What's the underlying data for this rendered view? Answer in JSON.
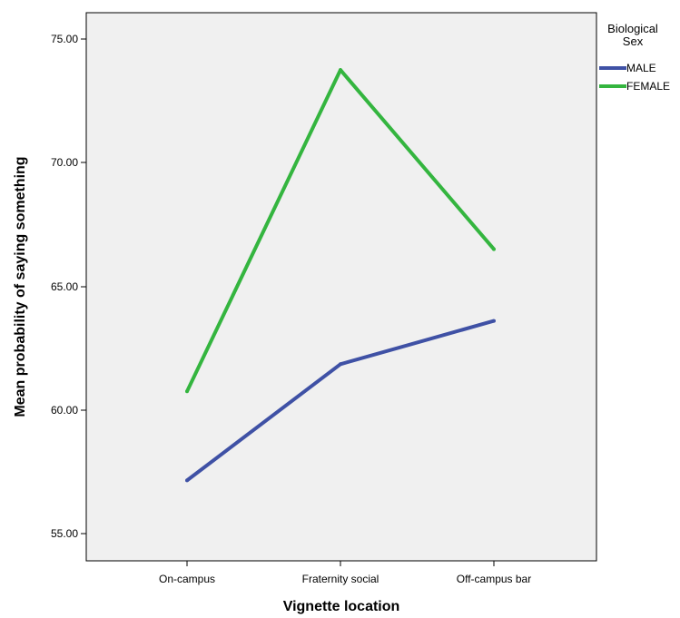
{
  "chart_data": {
    "type": "line",
    "categories": [
      "On-campus",
      "Fraternity social",
      "Off-campus bar"
    ],
    "series": [
      {
        "name": "MALE",
        "values": [
          57.15,
          61.85,
          63.6
        ],
        "color": "#3f51a5"
      },
      {
        "name": "FEMALE",
        "values": [
          60.75,
          73.75,
          66.5
        ],
        "color": "#34b53f"
      }
    ],
    "xlabel": "Vignette location",
    "ylabel": "Mean probability of saying something",
    "yticks": [
      "55.00",
      "60.00",
      "65.00",
      "70.00",
      "75.00"
    ],
    "ylim": [
      54.0,
      76.2
    ],
    "legend": {
      "title_line1": "Biological",
      "title_line2": "Sex",
      "placement": "right"
    },
    "grid": false,
    "plot_background": "#f0f0f0"
  }
}
